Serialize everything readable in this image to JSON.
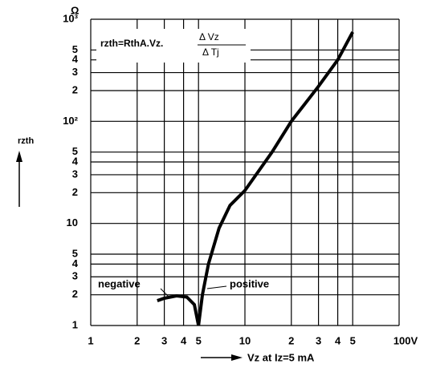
{
  "chart_data": {
    "type": "line",
    "y_unit": "Ω",
    "y_label": "rzth",
    "x_label": "Vz at Iz=5 mA",
    "formula": "rzth=RthA.Vz.",
    "formula_numerator": "Δ Vz",
    "formula_denominator": "Δ Tj",
    "log_x": true,
    "log_y": true,
    "grid": true,
    "xlim": [
      1,
      100
    ],
    "ylim": [
      1,
      1000
    ],
    "xticks": [
      1,
      2,
      3,
      4,
      5,
      10,
      {
        "value": 20,
        "label": "2"
      },
      {
        "value": 30,
        "label": "3"
      },
      {
        "value": 40,
        "label": "4"
      },
      {
        "value": 50,
        "label": "5"
      },
      {
        "value": 100,
        "label": "100V"
      }
    ],
    "yticks": [
      1,
      2,
      3,
      4,
      5,
      10,
      {
        "value": 20,
        "label": "2"
      },
      {
        "value": 30,
        "label": "3"
      },
      {
        "value": 40,
        "label": "4"
      },
      {
        "value": 50,
        "label": "5"
      },
      {
        "value": 100,
        "label": "10²"
      },
      {
        "value": 200,
        "label": "2"
      },
      {
        "value": 300,
        "label": "3"
      },
      {
        "value": 400,
        "label": "4"
      },
      {
        "value": 500,
        "label": "5"
      },
      {
        "value": 1000,
        "label": "10³"
      }
    ],
    "series": [
      {
        "name": "negative",
        "color": "#000000",
        "x": [
          2.7,
          3.0,
          3.6,
          4.2,
          4.7,
          5.0
        ],
        "values": [
          1.75,
          1.85,
          1.95,
          1.9,
          1.6,
          1.0
        ]
      },
      {
        "name": "positive",
        "color": "#000000",
        "x": [
          5.0,
          5.3,
          5.8,
          6.8,
          8,
          10,
          15,
          20,
          30,
          40,
          50
        ],
        "values": [
          1.0,
          2,
          4,
          9,
          15,
          21,
          50,
          100,
          220,
          400,
          750
        ]
      }
    ]
  }
}
